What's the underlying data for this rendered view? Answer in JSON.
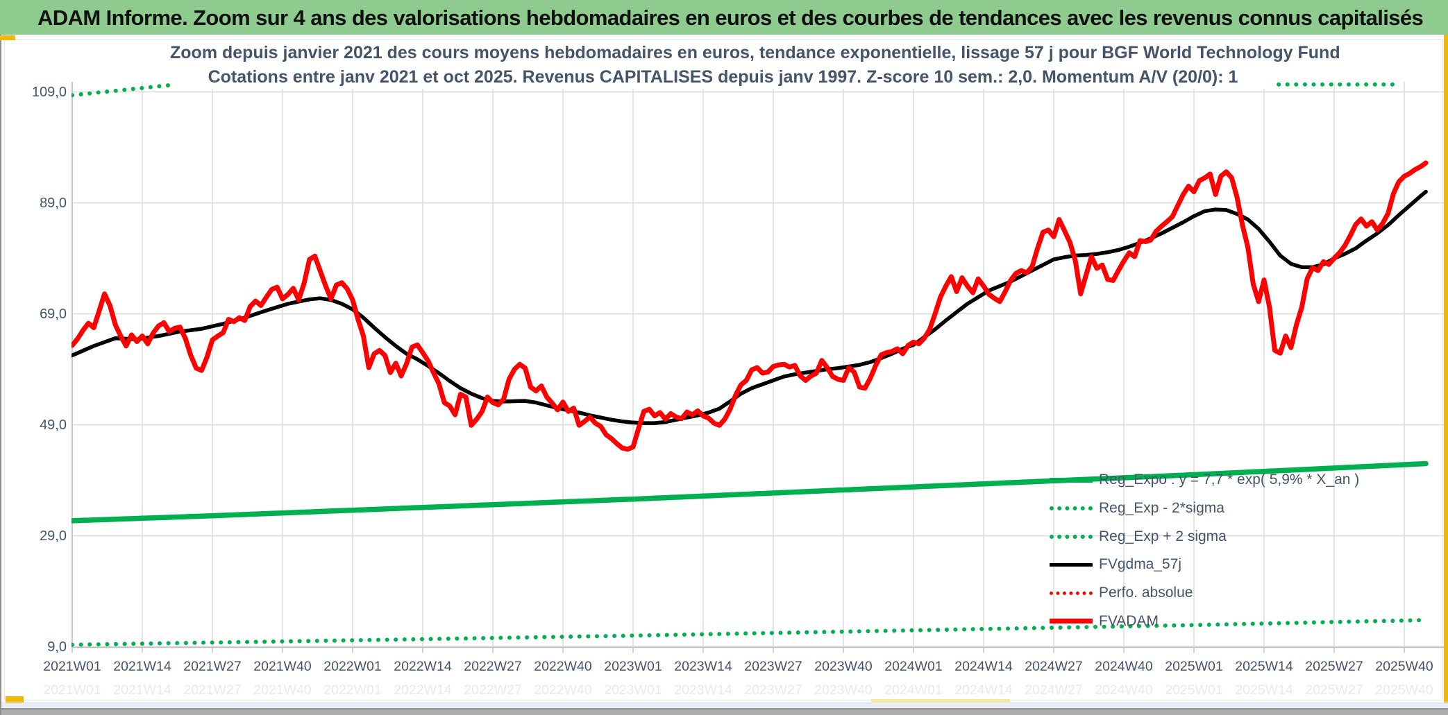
{
  "header": {
    "title": "ADAM Informe. Zoom sur 4 ans des valorisations hebdomadaires en euros et des courbes de tendances avec les revenus connus capitalisés",
    "bg_color": "#8FCA8F"
  },
  "chart": {
    "title_line1": "Zoom depuis janvier 2021 des cours moyens hebdomadaires en euros, tendance exponentielle, lissage 57 j pour BGF World Technology Fund",
    "title_line2": "Cotations entre janv 2021 et oct 2025. Revenus CAPITALISES depuis janv 1997. Z-score 10 sem.: 2,0. Momentum A/V (20/0): 1",
    "colors": {
      "green": "#00B050",
      "red": "#FF0000",
      "black": "#000000",
      "grid": "#D9D9D9",
      "axis": "#BFBFBF",
      "text": "#44546A",
      "header_green": "#8FCA8F",
      "gold_accent": "#EDB90F"
    },
    "legend": {
      "position": "inside lower-right",
      "items": [
        {
          "label": "Reg_Expo : y = 7,7 * exp( 5,9% *  X_an )",
          "swatch": "green-solid"
        },
        {
          "label": "Reg_Exp - 2*sigma",
          "swatch": "green-dotted"
        },
        {
          "label": "Reg_Exp + 2 sigma",
          "swatch": "green-dotted"
        },
        {
          "label": "FVgdma_57j",
          "swatch": "black-solid"
        },
        {
          "label": "Perfo. absolue",
          "swatch": "red-dotted"
        },
        {
          "label": "FVADAM",
          "swatch": "red-solid"
        }
      ]
    },
    "chart_data": {
      "type": "line",
      "title": "Zoom depuis janvier 2021 des cours moyens hebdomadaires en euros, tendance exponentielle, lissage 57 j pour BGF World Technology Fund",
      "subtitle": "Cotations entre janv 2021 et oct 2025. Revenus CAPITALISES depuis janv 1997. Z-score 10 sem.: 2,0. Momentum A/V (20/0): 1",
      "grid": true,
      "x_axis": {
        "unit": "week index from 2021W01",
        "tick_week_indices": [
          0,
          13,
          26,
          39,
          52,
          65,
          78,
          91,
          104,
          117,
          130,
          143,
          156,
          169,
          182,
          195,
          208,
          221,
          234,
          247
        ],
        "tick_labels": [
          "2021W01",
          "2021W14",
          "2021W27",
          "2021W40",
          "2022W01",
          "2022W14",
          "2022W27",
          "2022W40",
          "2023W01",
          "2023W14",
          "2023W27",
          "2023W40",
          "2024W01",
          "2024W14",
          "2024W27",
          "2024W40",
          "2025W01",
          "2025W14",
          "2025W27",
          "2025W40"
        ],
        "range_weeks": [
          0,
          251
        ]
      },
      "y_axis": {
        "tick_values": [
          9,
          29,
          49,
          69,
          89,
          109
        ],
        "tick_labels": [
          "9,0",
          "29,0",
          "49,0",
          "69,0",
          "89,0",
          "109,0"
        ],
        "ylim": [
          9,
          110.8
        ]
      },
      "series": [
        {
          "name": "FVADAM",
          "color": "#FF0000",
          "style": "solid",
          "width": 7,
          "start_week": 0,
          "weekly_values": [
            63.3,
            64.5,
            66.0,
            67.3,
            66.5,
            69.5,
            72.6,
            70.5,
            67.0,
            65.0,
            63.2,
            65.2,
            64.0,
            65.0,
            63.6,
            65.5,
            66.8,
            67.4,
            65.8,
            66.4,
            66.6,
            64.5,
            61.5,
            59.2,
            58.8,
            61.2,
            64.3,
            65.0,
            65.6,
            68.0,
            67.6,
            68.3,
            67.8,
            70.3,
            71.3,
            70.5,
            72.0,
            73.4,
            73.8,
            71.7,
            72.5,
            73.6,
            71.5,
            74.5,
            78.8,
            79.4,
            76.7,
            74.0,
            71.7,
            74.2,
            74.6,
            73.5,
            71.5,
            68.0,
            65.0,
            59.3,
            61.8,
            62.4,
            61.5,
            58.4,
            60.1,
            57.8,
            60.0,
            63.0,
            63.4,
            62.0,
            60.5,
            58.4,
            56.4,
            53.0,
            52.4,
            50.8,
            54.5,
            54.0,
            48.9,
            50.0,
            51.4,
            54.0,
            53.0,
            52.6,
            53.6,
            57.2,
            59.0,
            59.9,
            59.2,
            55.8,
            55.1,
            56.0,
            54.0,
            52.9,
            51.7,
            53.1,
            51.4,
            52.0,
            48.9,
            49.6,
            50.4,
            49.3,
            48.7,
            47.2,
            46.5,
            45.6,
            44.8,
            44.6,
            45.0,
            48.3,
            51.4,
            51.8,
            50.6,
            51.2,
            50.0,
            51.0,
            50.4,
            50.1,
            51.3,
            50.8,
            51.5,
            50.6,
            50.2,
            49.3,
            48.9,
            50.0,
            51.8,
            54.3,
            56.2,
            57.0,
            58.9,
            59.3,
            58.3,
            58.5,
            59.5,
            59.8,
            59.9,
            59.4,
            59.7,
            57.8,
            57.0,
            57.8,
            58.3,
            60.6,
            59.3,
            57.7,
            57.2,
            57.0,
            59.3,
            58.5,
            55.8,
            55.6,
            57.4,
            59.7,
            61.6,
            62.0,
            62.2,
            62.7,
            61.8,
            63.3,
            63.9,
            63.6,
            64.6,
            66.2,
            69.0,
            72.0,
            74.0,
            75.7,
            73.0,
            75.5,
            74.0,
            72.8,
            75.3,
            74.0,
            72.5,
            71.8,
            71.2,
            73.0,
            75.0,
            76.3,
            76.8,
            76.4,
            77.5,
            80.8,
            83.7,
            84.1,
            82.9,
            86.0,
            84.0,
            81.9,
            78.6,
            72.6,
            76.0,
            79.3,
            77.2,
            77.8,
            75.2,
            75.0,
            76.8,
            78.5,
            80.0,
            79.3,
            82.2,
            82.0,
            82.3,
            83.9,
            84.8,
            85.6,
            86.5,
            88.5,
            90.5,
            92.0,
            91.0,
            93.0,
            93.5,
            94.2,
            90.5,
            93.8,
            94.6,
            93.5,
            90.0,
            85.0,
            81.0,
            74.3,
            71.2,
            75.1,
            70.2,
            62.4,
            61.9,
            65.0,
            62.9,
            67.0,
            70.2,
            75.3,
            77.3,
            76.8,
            78.4,
            77.9,
            79.0,
            80.0,
            81.3,
            83.1,
            85.1,
            86.1,
            84.8,
            85.6,
            84.1,
            85.3,
            87.1,
            90.7,
            92.8,
            93.8,
            94.3,
            95.0,
            95.5,
            96.2
          ]
        },
        {
          "name": "FVgdma_57j",
          "color": "#000000",
          "style": "solid",
          "width": 5.5,
          "anchors": [
            [
              0,
              61.5
            ],
            [
              4,
              63.2
            ],
            [
              8,
              64.6
            ],
            [
              12,
              64.4
            ],
            [
              16,
              65.0
            ],
            [
              20,
              65.8
            ],
            [
              24,
              66.3
            ],
            [
              28,
              67.2
            ],
            [
              32,
              68.3
            ],
            [
              36,
              69.6
            ],
            [
              40,
              70.8
            ],
            [
              44,
              71.6
            ],
            [
              46,
              71.8
            ],
            [
              48,
              71.5
            ],
            [
              50,
              70.8
            ],
            [
              52,
              69.8
            ],
            [
              54,
              68.3
            ],
            [
              56,
              66.5
            ],
            [
              58,
              64.8
            ],
            [
              60,
              63.2
            ],
            [
              62,
              61.8
            ],
            [
              64,
              60.8
            ],
            [
              66,
              59.6
            ],
            [
              68,
              58.3
            ],
            [
              70,
              56.9
            ],
            [
              72,
              55.6
            ],
            [
              74,
              54.6
            ],
            [
              76,
              53.8
            ],
            [
              78,
              53.3
            ],
            [
              80,
              53.2
            ],
            [
              84,
              53.3
            ],
            [
              86,
              53.0
            ],
            [
              88,
              52.5
            ],
            [
              90,
              52.0
            ],
            [
              92,
              51.6
            ],
            [
              94,
              51.2
            ],
            [
              96,
              50.7
            ],
            [
              98,
              50.3
            ],
            [
              100,
              49.9
            ],
            [
              102,
              49.6
            ],
            [
              104,
              49.4
            ],
            [
              106,
              49.3
            ],
            [
              108,
              49.3
            ],
            [
              110,
              49.5
            ],
            [
              112,
              49.9
            ],
            [
              114,
              50.3
            ],
            [
              116,
              50.7
            ],
            [
              118,
              51.2
            ],
            [
              120,
              51.9
            ],
            [
              122,
              53.2
            ],
            [
              124,
              54.6
            ],
            [
              126,
              55.6
            ],
            [
              128,
              56.3
            ],
            [
              130,
              57.0
            ],
            [
              132,
              57.7
            ],
            [
              134,
              58.1
            ],
            [
              136,
              58.4
            ],
            [
              138,
              58.7
            ],
            [
              140,
              59.0
            ],
            [
              142,
              59.2
            ],
            [
              144,
              59.5
            ],
            [
              146,
              59.8
            ],
            [
              148,
              60.3
            ],
            [
              150,
              61.0
            ],
            [
              152,
              61.8
            ],
            [
              154,
              62.7
            ],
            [
              156,
              63.4
            ],
            [
              158,
              64.8
            ],
            [
              160,
              66.2
            ],
            [
              162,
              67.8
            ],
            [
              164,
              69.3
            ],
            [
              166,
              70.8
            ],
            [
              168,
              72.0
            ],
            [
              170,
              73.2
            ],
            [
              172,
              74.0
            ],
            [
              174,
              74.8
            ],
            [
              176,
              75.8
            ],
            [
              178,
              76.8
            ],
            [
              180,
              77.8
            ],
            [
              182,
              78.8
            ],
            [
              184,
              79.2
            ],
            [
              186,
              79.5
            ],
            [
              188,
              79.6
            ],
            [
              190,
              79.8
            ],
            [
              192,
              80.1
            ],
            [
              194,
              80.5
            ],
            [
              196,
              81.1
            ],
            [
              198,
              81.8
            ],
            [
              200,
              82.6
            ],
            [
              202,
              83.5
            ],
            [
              204,
              84.5
            ],
            [
              206,
              85.5
            ],
            [
              208,
              86.6
            ],
            [
              210,
              87.5
            ],
            [
              212,
              87.8
            ],
            [
              214,
              87.7
            ],
            [
              216,
              87.0
            ],
            [
              218,
              86.0
            ],
            [
              220,
              84.3
            ],
            [
              222,
              82.0
            ],
            [
              224,
              79.5
            ],
            [
              226,
              78.0
            ],
            [
              228,
              77.4
            ],
            [
              230,
              77.4
            ],
            [
              232,
              77.9
            ],
            [
              234,
              79.0
            ],
            [
              236,
              79.8
            ],
            [
              238,
              80.8
            ],
            [
              240,
              82.2
            ],
            [
              242,
              83.5
            ],
            [
              244,
              85.0
            ],
            [
              246,
              86.8
            ],
            [
              248,
              88.5
            ],
            [
              250,
              90.2
            ],
            [
              251,
              91.0
            ]
          ]
        },
        {
          "name": "Reg_Expo : y = 7,7 * exp( 5,9% *  X_an )",
          "color": "#00B050",
          "style": "solid",
          "width": 7.5,
          "anchors": [
            [
              0,
              31.7
            ],
            [
              26,
              32.6
            ],
            [
              52,
              33.6
            ],
            [
              78,
              34.6
            ],
            [
              104,
              35.6
            ],
            [
              130,
              36.7
            ],
            [
              156,
              37.8
            ],
            [
              182,
              38.9
            ],
            [
              208,
              40.0
            ],
            [
              234,
              41.2
            ],
            [
              251,
              42.0
            ]
          ]
        },
        {
          "name": "Reg_Exp - 2*sigma",
          "color": "#00B050",
          "style": "dotted",
          "width": 6,
          "anchors": [
            [
              0,
              9.35
            ],
            [
              52,
              10.15
            ],
            [
              104,
              11.0
            ],
            [
              156,
              11.95
            ],
            [
              208,
              12.9
            ],
            [
              251,
              13.8
            ]
          ]
        },
        {
          "name": "Reg_Exp + 2 sigma",
          "color": "#00B050",
          "style": "dotted",
          "width": 6,
          "anchors": [
            [
              0,
              108.4
            ],
            [
              9,
              109.3
            ],
            [
              18,
              110.2
            ],
            [
              24,
              110.35
            ],
            [
              246,
              110.35
            ]
          ],
          "note": "clipped at top of plot; hidden behind title block in the middle"
        },
        {
          "name": "Perfo. absolue",
          "color": "#FF0000",
          "style": "dotted",
          "width": 5,
          "anchors": [],
          "note": "listed in legend, not visible inside plot area"
        }
      ]
    }
  }
}
